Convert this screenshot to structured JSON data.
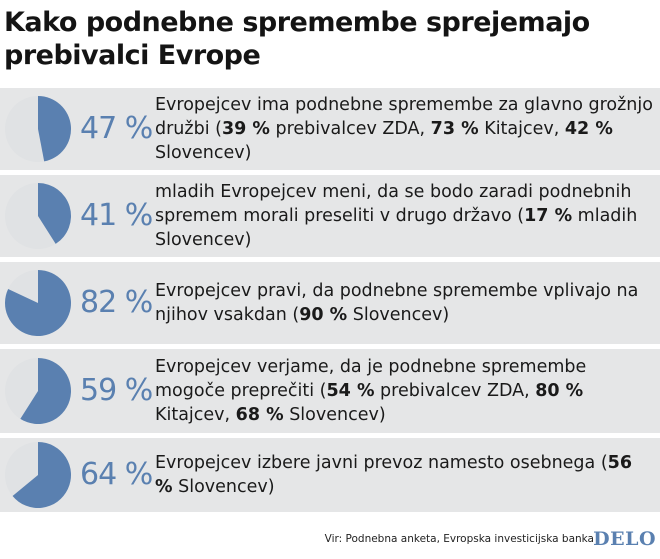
{
  "title": "Kako podnebne spremembe sprejemajo prebivalci Evrope",
  "colors": {
    "accent": "#5a80b0",
    "pie_bg": "#e0e2e4",
    "row_bg": "#e5e6e7"
  },
  "chart_data": {
    "type": "pie",
    "title": "Kako podnebne spremembe sprejemajo prebivalci Evrope",
    "items": [
      {
        "value": 47,
        "label": "47 %",
        "text": [
          {
            "t": "Evropejcev ima podnebne spremembe za glavno grožnjo družbi ("
          },
          {
            "t": "39 %",
            "b": true
          },
          {
            "t": " prebivalcev ZDA, "
          },
          {
            "t": "73 %",
            "b": true
          },
          {
            "t": " Kitajcev, "
          },
          {
            "t": "42 %",
            "b": true
          },
          {
            "t": " Slovencev)"
          }
        ]
      },
      {
        "value": 41,
        "label": "41 %",
        "text": [
          {
            "t": "mladih Evropejcev meni, da se bodo zaradi podnebnih spremem morali preseliti v drugo državo ("
          },
          {
            "t": "17 %",
            "b": true
          },
          {
            "t": " mladih Slovencev)"
          }
        ]
      },
      {
        "value": 82,
        "label": "82 %",
        "text": [
          {
            "t": "Evropejcev pravi, da podnebne spremembe vplivajo na njihov vsakdan ("
          },
          {
            "t": "90 %",
            "b": true
          },
          {
            "t": " Slovencev)"
          }
        ]
      },
      {
        "value": 59,
        "label": "59 %",
        "text": [
          {
            "t": "Evropejcev verjame, da je podnebne spremembe mogoče preprečiti ("
          },
          {
            "t": "54 %",
            "b": true
          },
          {
            "t": " prebivalcev ZDA, "
          },
          {
            "t": "80 %",
            "b": true
          },
          {
            "t": " Kitajcev, "
          },
          {
            "t": "68 %",
            "b": true
          },
          {
            "t": " Slovencev)"
          }
        ]
      },
      {
        "value": 64,
        "label": "64 %",
        "text": [
          {
            "t": "Evropejcev izbere javni prevoz namesto osebnega ("
          },
          {
            "t": "56 %",
            "b": true
          },
          {
            "t": " Slovencev)"
          }
        ]
      }
    ]
  },
  "footer": {
    "source": "Vir: Podnebna anketa, Evropska investicijska banka",
    "logo": "DELO"
  }
}
